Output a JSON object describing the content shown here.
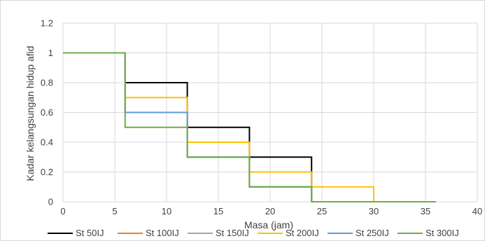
{
  "chart_data": {
    "type": "line",
    "step": true,
    "xlabel": "Masa (jam)",
    "ylabel": "Kadar kelangsungan hidup afid",
    "xlim": [
      0,
      40
    ],
    "ylim": [
      0,
      1.2
    ],
    "x_ticks": [
      "0",
      "5",
      "10",
      "15",
      "20",
      "25",
      "30",
      "35",
      "40"
    ],
    "y_ticks": [
      "0",
      "0.2",
      "0.4",
      "0.6",
      "0.8",
      "1",
      "1.2"
    ],
    "grid": true,
    "legend_position": "bottom",
    "series": [
      {
        "name": "St 50IJ",
        "color": "#000000",
        "points": [
          [
            0,
            1
          ],
          [
            6,
            1
          ],
          [
            6,
            0.8
          ],
          [
            12,
            0.8
          ],
          [
            12,
            0.5
          ],
          [
            18,
            0.5
          ],
          [
            18,
            0.3
          ],
          [
            24,
            0.3
          ],
          [
            24,
            0
          ]
        ]
      },
      {
        "name": "St 100IJ",
        "color": "#ED7D31",
        "points": [
          [
            0,
            1
          ],
          [
            6,
            1
          ],
          [
            6,
            0.6
          ],
          [
            12,
            0.6
          ],
          [
            12,
            0.3
          ],
          [
            18,
            0.3
          ],
          [
            18,
            0.1
          ],
          [
            24,
            0.1
          ],
          [
            24,
            0
          ]
        ]
      },
      {
        "name": "St 150IJ",
        "color": "#A5A5A5",
        "points": [
          [
            0,
            1
          ],
          [
            6,
            1
          ],
          [
            6,
            0.6
          ],
          [
            12,
            0.6
          ],
          [
            12,
            0.3
          ],
          [
            18,
            0.3
          ],
          [
            18,
            0.1
          ],
          [
            24,
            0.1
          ],
          [
            24,
            0
          ]
        ]
      },
      {
        "name": "St 200IJ",
        "color": "#FFC000",
        "points": [
          [
            0,
            1
          ],
          [
            6,
            1
          ],
          [
            6,
            0.7
          ],
          [
            12,
            0.7
          ],
          [
            12,
            0.4
          ],
          [
            18,
            0.4
          ],
          [
            18,
            0.2
          ],
          [
            24,
            0.2
          ],
          [
            24,
            0.1
          ],
          [
            30,
            0.1
          ],
          [
            30,
            0
          ]
        ]
      },
      {
        "name": "St 250IJ",
        "color": "#5B9BD5",
        "points": [
          [
            0,
            1
          ],
          [
            6,
            1
          ],
          [
            6,
            0.6
          ],
          [
            12,
            0.6
          ],
          [
            12,
            0.3
          ],
          [
            18,
            0.3
          ],
          [
            18,
            0.1
          ],
          [
            24,
            0.1
          ],
          [
            24,
            0
          ]
        ]
      },
      {
        "name": "St 300IJ",
        "color": "#70AD47",
        "points": [
          [
            0,
            1
          ],
          [
            6,
            1
          ],
          [
            6,
            0.5
          ],
          [
            12,
            0.5
          ],
          [
            12,
            0.3
          ],
          [
            18,
            0.3
          ],
          [
            18,
            0.1
          ],
          [
            24,
            0.1
          ],
          [
            24,
            0
          ],
          [
            36,
            0
          ]
        ]
      }
    ]
  }
}
